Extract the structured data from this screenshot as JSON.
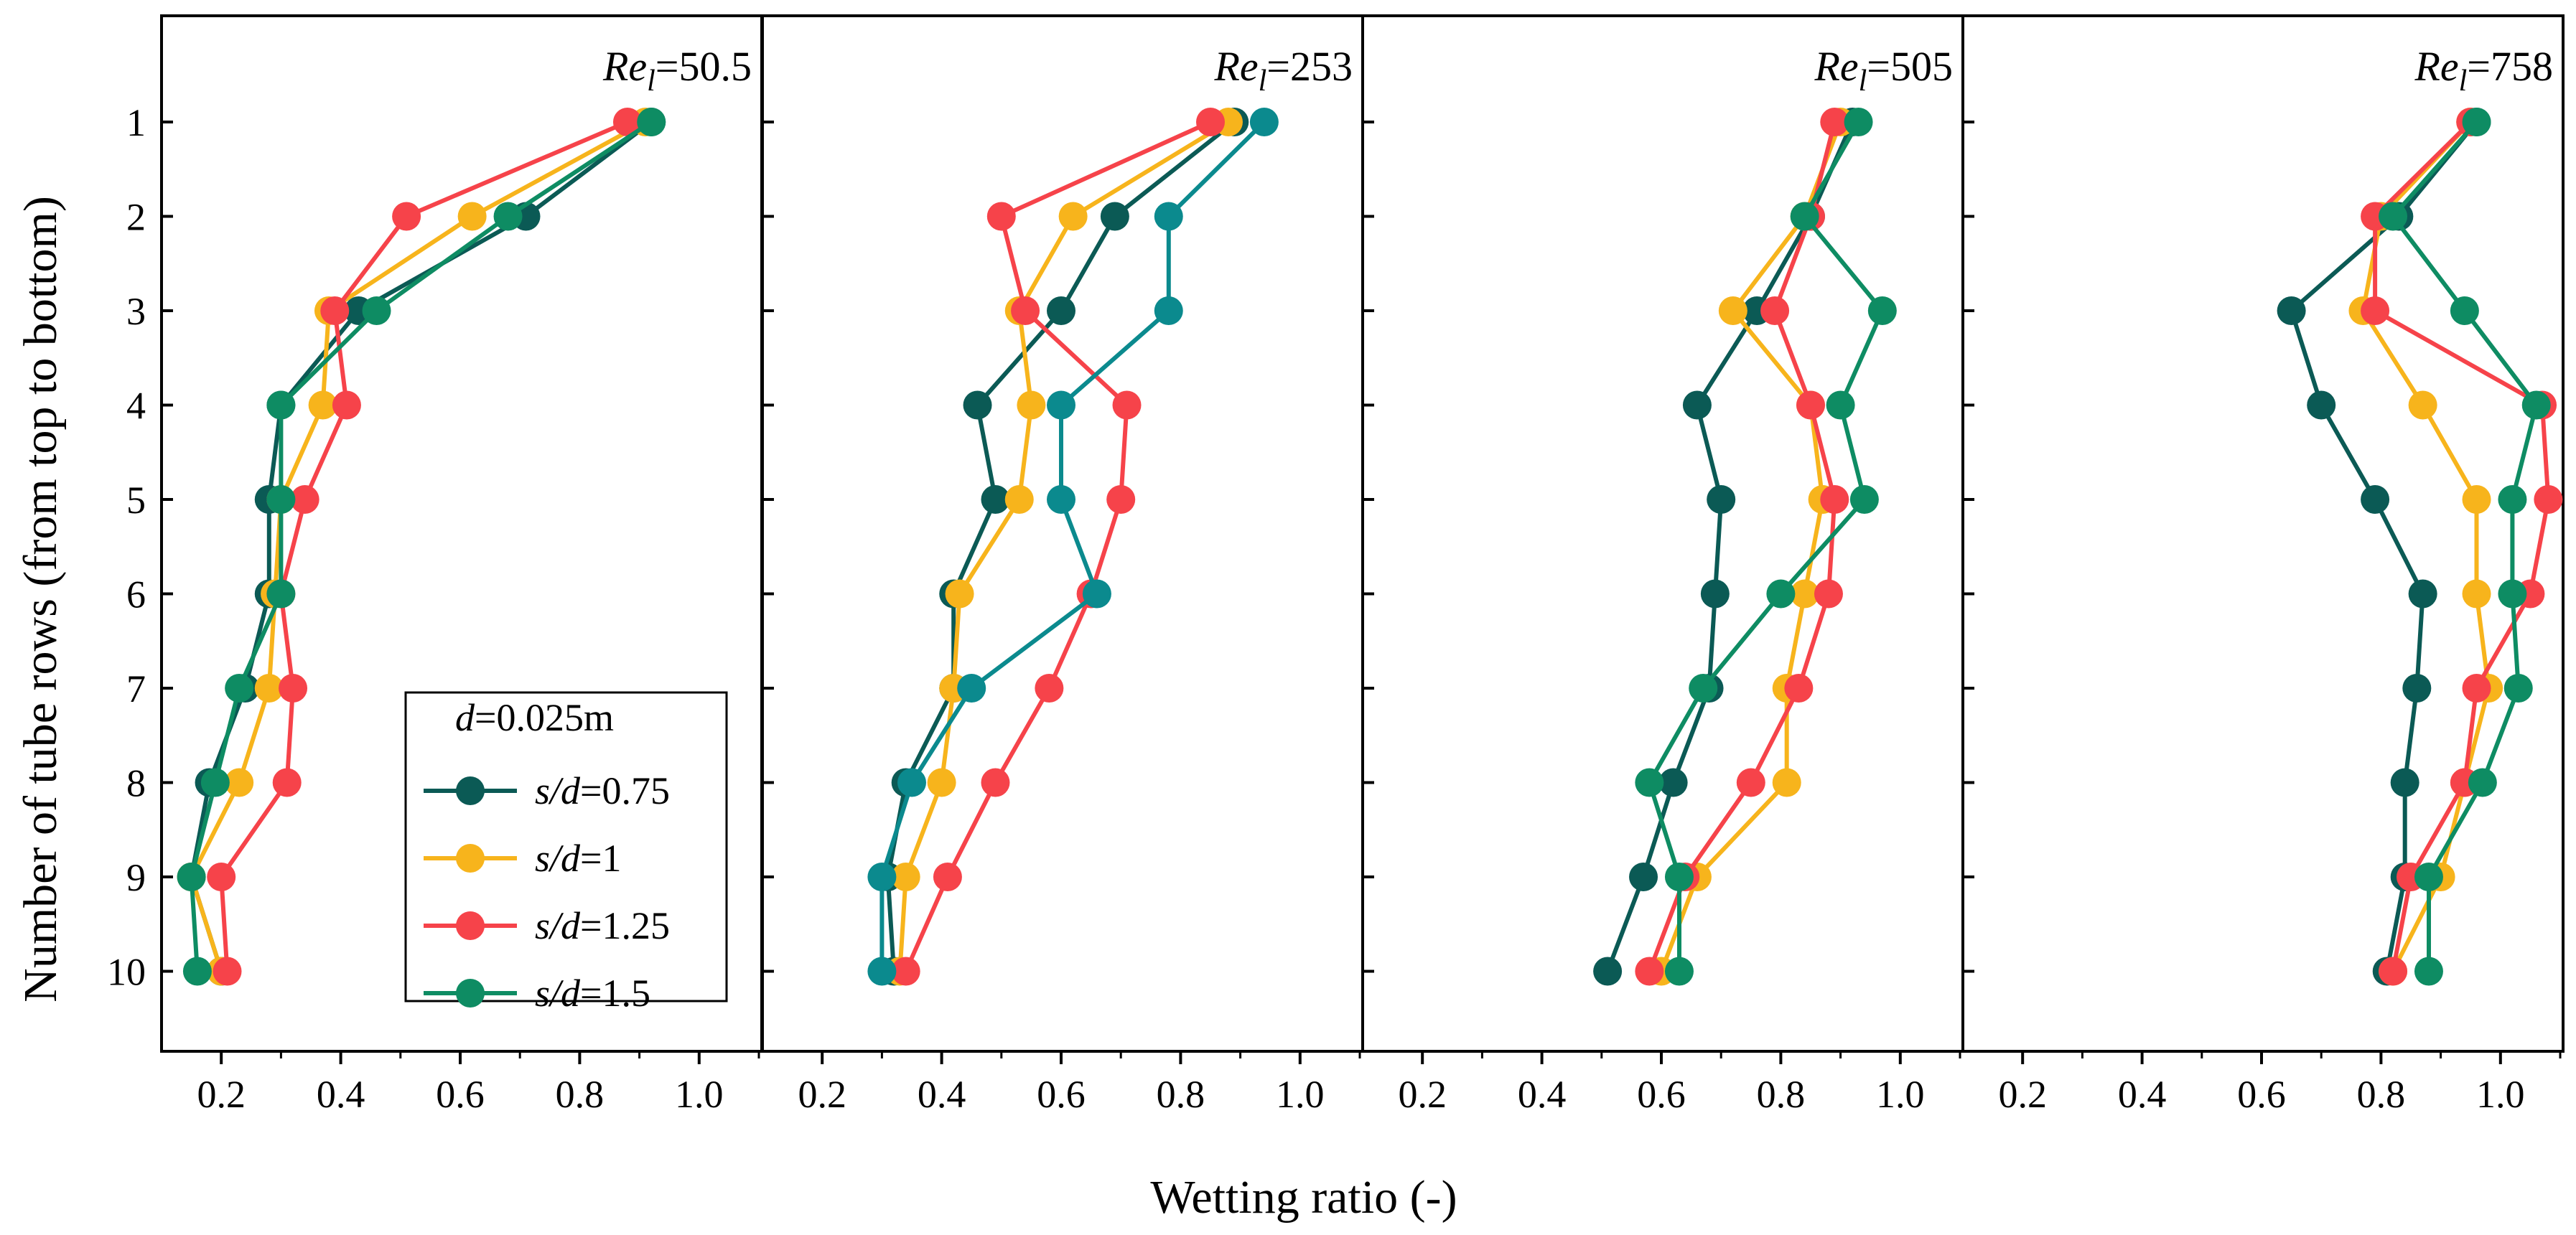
{
  "chart_data": {
    "type": "line",
    "xlabel": "Wetting ratio (-)",
    "ylabel": "Number of tube rows (from top to bottom)",
    "rows": [
      1,
      2,
      3,
      4,
      5,
      6,
      7,
      8,
      9,
      10
    ],
    "x_ticks": [
      "0.2",
      "0.4",
      "0.6",
      "0.8",
      "1.0"
    ],
    "y_ticks": [
      "1",
      "2",
      "3",
      "4",
      "5",
      "6",
      "7",
      "8",
      "9",
      "10"
    ],
    "legend": {
      "title_italic": "d",
      "title_rest": "=0.025m",
      "entries": [
        {
          "key": "s075",
          "italic": "s/d",
          "rest": "=0.75"
        },
        {
          "key": "s1",
          "italic": "s/d",
          "rest": "=1"
        },
        {
          "key": "s125",
          "italic": "s/d",
          "rest": "=1.25"
        },
        {
          "key": "s15",
          "italic": "s/d",
          "rest": "=1.5"
        }
      ]
    },
    "series_colors": {
      "s075": "#0b5a55",
      "s1": "#f7b41c",
      "s125": "#f6434a",
      "s15": "#0e8c63"
    },
    "extra_colors": {
      "teal": "#0b8a8e"
    },
    "panels": [
      {
        "re_base": "Re",
        "re_sub": "l",
        "re_value": "=50.5",
        "xlim": [
          0.1,
          1.1
        ],
        "series": {
          "s075": [
            0.92,
            0.71,
            0.43,
            0.3,
            0.28,
            0.28,
            0.24,
            0.18,
            0.15,
            0.2
          ],
          "s1": [
            0.91,
            0.62,
            0.38,
            0.37,
            0.3,
            0.29,
            0.28,
            0.23,
            0.15,
            0.2
          ],
          "s125": [
            0.88,
            0.51,
            0.39,
            0.41,
            0.34,
            0.3,
            0.32,
            0.31,
            0.2,
            0.21
          ],
          "s15": [
            0.92,
            0.68,
            0.46,
            0.3,
            0.3,
            0.3,
            0.23,
            0.19,
            0.15,
            0.16
          ]
        }
      },
      {
        "re_base": "Re",
        "re_sub": "l",
        "re_value": "=253",
        "xlim": [
          0.1,
          1.1
        ],
        "series": {
          "s075": [
            0.89,
            0.69,
            0.6,
            0.46,
            0.49,
            0.42,
            0.42,
            0.34,
            0.31,
            0.32
          ],
          "s1": [
            0.88,
            0.62,
            0.53,
            0.55,
            0.53,
            0.43,
            0.42,
            0.4,
            0.34,
            0.33
          ],
          "s125": [
            0.85,
            0.5,
            0.54,
            0.71,
            0.7,
            0.65,
            0.58,
            0.49,
            0.41,
            0.34
          ],
          "teal": [
            0.94,
            0.78,
            0.78,
            0.6,
            0.6,
            0.66,
            0.45,
            0.35,
            0.3,
            0.3
          ]
        }
      },
      {
        "re_base": "Re",
        "re_sub": "l",
        "re_value": "=505",
        "xlim": [
          0.1,
          1.1
        ],
        "series": {
          "s075": [
            0.92,
            0.85,
            0.76,
            0.66,
            0.7,
            0.69,
            0.68,
            0.62,
            0.57,
            0.51
          ],
          "s1": [
            0.9,
            0.84,
            0.72,
            0.85,
            0.87,
            0.84,
            0.81,
            0.81,
            0.66,
            0.6
          ],
          "s125": [
            0.89,
            0.85,
            0.79,
            0.85,
            0.89,
            0.88,
            0.83,
            0.75,
            0.64,
            0.58
          ],
          "s15": [
            0.93,
            0.84,
            0.97,
            0.9,
            0.94,
            0.8,
            0.67,
            0.58,
            0.63,
            0.63
          ]
        }
      },
      {
        "re_base": "Re",
        "re_sub": "l",
        "re_value": "=758",
        "xlim": [
          0.1,
          1.1
        ],
        "series": {
          "s075": [
            0.96,
            0.83,
            0.65,
            0.7,
            0.79,
            0.87,
            0.86,
            0.84,
            0.84,
            0.81
          ],
          "s1": [
            0.95,
            0.8,
            0.77,
            0.87,
            0.96,
            0.96,
            0.98,
            0.94,
            0.9,
            0.82
          ],
          "s125": [
            0.95,
            0.79,
            0.79,
            1.07,
            1.08,
            1.05,
            0.96,
            0.94,
            0.85,
            0.82
          ],
          "s15": [
            0.96,
            0.82,
            0.94,
            1.06,
            1.02,
            1.02,
            1.03,
            0.97,
            0.88,
            0.88
          ]
        }
      }
    ]
  }
}
